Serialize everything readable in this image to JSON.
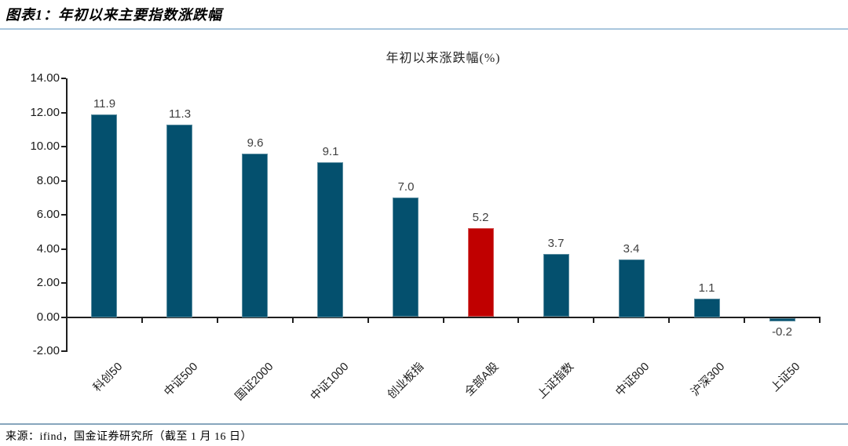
{
  "header": {
    "title": "图表1：年初以来主要指数涨跌幅"
  },
  "chart_data": {
    "type": "bar",
    "title": "年初以来涨跌幅(%)",
    "categories": [
      "科创50",
      "中证500",
      "国证2000",
      "中证1000",
      "创业板指",
      "全部A股",
      "上证指数",
      "中证800",
      "沪深300",
      "上证50"
    ],
    "values": [
      11.9,
      11.3,
      9.6,
      9.1,
      7.0,
      5.2,
      3.7,
      3.4,
      1.1,
      -0.2
    ],
    "value_labels": [
      "11.9",
      "11.3",
      "9.6",
      "9.1",
      "7.0",
      "5.2",
      "3.7",
      "3.4",
      "1.1",
      "-0.2"
    ],
    "highlight_index": 5,
    "highlight_category": "全部A股",
    "bar_color": "#04506e",
    "highlight_color": "#c00000",
    "ylim": [
      -2,
      14
    ],
    "ytick_step": 2,
    "ytick_labels": [
      "14.00",
      "12.00",
      "10.00",
      "8.00",
      "6.00",
      "4.00",
      "2.00",
      "0.00",
      "-2.00"
    ],
    "xlabel": "",
    "ylabel": "",
    "grid": false,
    "legend": "none",
    "x_labels_rotated_degrees": 45
  },
  "footer": {
    "source": "来源：ifind，国金证券研究所（截至 1 月 16 日）"
  },
  "colors": {
    "header_rule": "#a9c6dd",
    "footer_rule": "#87a5bc",
    "axis": "#1f1f1f",
    "value_label": "#3f3f3f",
    "background": "#ffffff"
  }
}
